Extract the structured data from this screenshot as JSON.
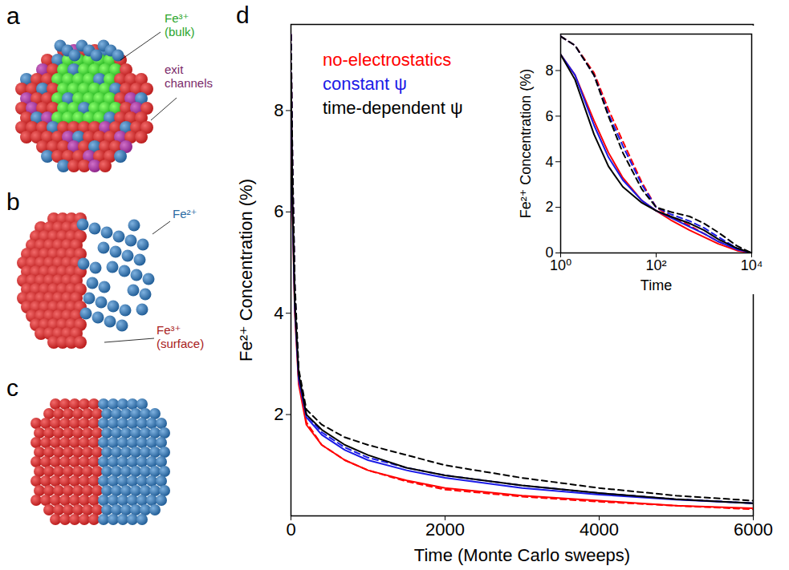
{
  "panel_labels": [
    "a",
    "b",
    "c",
    "d"
  ],
  "illustrations": [
    {
      "labels": [
        {
          "text": "Fe³⁺ (bulk)",
          "color": "#2aa52a"
        },
        {
          "text": "exit channels",
          "color": "#7a2a6a"
        }
      ]
    },
    {
      "labels": [
        {
          "text": "Fe²⁺",
          "color": "#2b6ca3"
        },
        {
          "text": "Fe³⁺ (surface)",
          "color": "#a82020"
        }
      ]
    },
    {
      "labels": []
    }
  ],
  "chart_data": [
    {
      "type": "line",
      "x_label": "Time (Monte Carlo sweeps)",
      "y_label": "Fe²⁺ Concentration (%)",
      "x": [
        0,
        20,
        50,
        100,
        200,
        400,
        700,
        1000,
        1500,
        2000,
        3000,
        4000,
        5000,
        6000
      ],
      "xlim": [
        0,
        6000
      ],
      "xticks": [
        0,
        2000,
        4000,
        6000
      ],
      "ylim": [
        0,
        9.7
      ],
      "yticks": [
        2,
        4,
        6,
        8
      ],
      "legend": "top-left",
      "series": [
        {
          "name": "no-electrostatics",
          "color": "#ff0000",
          "line_style": "solid",
          "values": [
            8.7,
            6.0,
            4.0,
            2.6,
            1.8,
            1.4,
            1.1,
            0.9,
            0.7,
            0.55,
            0.4,
            0.3,
            0.2,
            0.15
          ]
        },
        {
          "name": "no-electrostatics",
          "color": "#ff0000",
          "line_style": "dashed",
          "values": [
            9.5,
            6.8,
            4.4,
            2.7,
            1.85,
            1.4,
            1.1,
            0.9,
            0.68,
            0.52,
            0.38,
            0.28,
            0.2,
            0.13
          ]
        },
        {
          "name": "constant ψ",
          "color": "#1a1ae6",
          "line_style": "solid",
          "values": [
            8.7,
            6.1,
            4.1,
            2.7,
            1.95,
            1.6,
            1.3,
            1.1,
            0.9,
            0.75,
            0.55,
            0.42,
            0.32,
            0.25
          ]
        },
        {
          "name": "constant ψ",
          "color": "#1a1ae6",
          "line_style": "dashed",
          "values": [
            9.5,
            6.9,
            4.5,
            2.8,
            2.0,
            1.65,
            1.35,
            1.15,
            0.95,
            0.8,
            0.6,
            0.45,
            0.33,
            0.25
          ]
        },
        {
          "name": "time-dependent ψ",
          "color": "#000000",
          "line_style": "solid",
          "values": [
            8.7,
            6.2,
            4.2,
            2.8,
            2.0,
            1.7,
            1.4,
            1.2,
            0.95,
            0.8,
            0.6,
            0.45,
            0.33,
            0.25
          ]
        },
        {
          "name": "time-dependent ψ",
          "color": "#000000",
          "line_style": "dashed",
          "values": [
            9.5,
            7.0,
            4.6,
            2.9,
            2.1,
            1.8,
            1.55,
            1.4,
            1.2,
            1.0,
            0.75,
            0.55,
            0.4,
            0.3
          ]
        }
      ]
    },
    {
      "type": "line",
      "x_label": "Time",
      "y_label": "Fe²⁺ Concentration (%)",
      "log": "x",
      "x": [
        1,
        2,
        5,
        10,
        20,
        50,
        100,
        200,
        500,
        1000,
        2000,
        5000,
        10000
      ],
      "xlim": [
        1,
        10000
      ],
      "xticks": [
        {
          "value": 1,
          "label": "10⁰"
        },
        {
          "value": 100,
          "label": "10²"
        },
        {
          "value": 10000,
          "label": "10⁴"
        }
      ],
      "ylim": [
        0,
        9.6
      ],
      "yticks": [
        0,
        2,
        4,
        6,
        8
      ],
      "series": [
        {
          "name": "no-electrostatics",
          "color": "#ff0000",
          "line_style": "solid",
          "values": [
            8.7,
            7.8,
            5.8,
            4.4,
            3.3,
            2.3,
            1.85,
            1.45,
            1.0,
            0.7,
            0.4,
            0.1,
            0.0
          ]
        },
        {
          "name": "no-electrostatics",
          "color": "#ff0000",
          "line_style": "dashed",
          "values": [
            9.5,
            9.1,
            7.9,
            6.3,
            4.9,
            3.1,
            2.0,
            1.6,
            1.2,
            0.85,
            0.5,
            0.15,
            0.0
          ]
        },
        {
          "name": "constant ψ",
          "color": "#1a1ae6",
          "line_style": "solid",
          "values": [
            8.7,
            7.8,
            5.6,
            4.2,
            3.2,
            2.3,
            1.85,
            1.55,
            1.15,
            0.85,
            0.5,
            0.15,
            0.0
          ]
        },
        {
          "name": "constant ψ",
          "color": "#1a1ae6",
          "line_style": "dashed",
          "values": [
            9.5,
            9.1,
            7.8,
            6.1,
            4.7,
            3.0,
            2.0,
            1.7,
            1.4,
            1.1,
            0.7,
            0.2,
            0.0
          ]
        },
        {
          "name": "time-dependent ψ",
          "color": "#000000",
          "line_style": "solid",
          "values": [
            8.7,
            7.6,
            5.2,
            3.8,
            2.9,
            2.2,
            1.85,
            1.6,
            1.3,
            1.0,
            0.6,
            0.2,
            0.0
          ]
        },
        {
          "name": "time-dependent ψ",
          "color": "#000000",
          "line_style": "dashed",
          "values": [
            9.5,
            9.1,
            7.8,
            6.0,
            4.4,
            2.8,
            2.0,
            1.8,
            1.6,
            1.3,
            0.9,
            0.3,
            0.0
          ]
        }
      ]
    }
  ]
}
